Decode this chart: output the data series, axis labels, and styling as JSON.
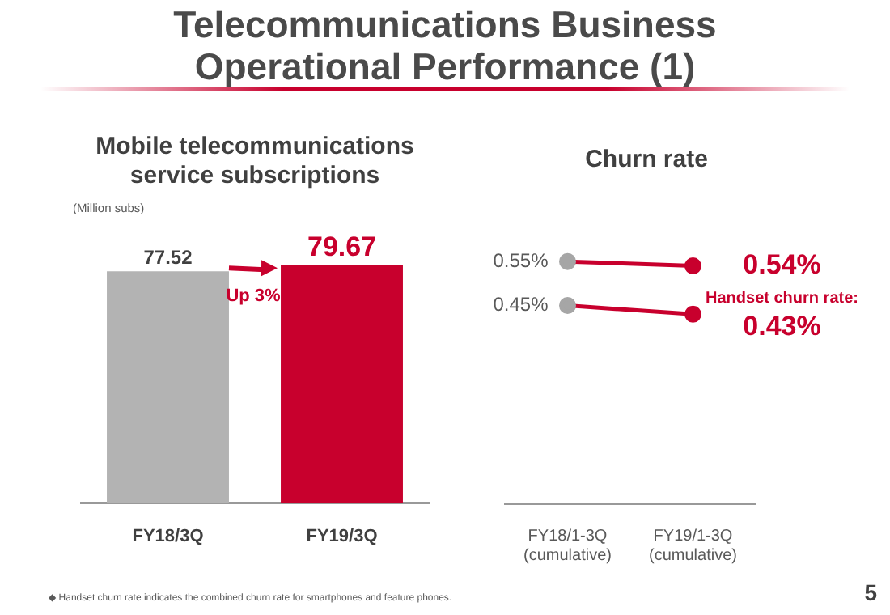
{
  "chart_data": [
    {
      "type": "other",
      "title": "Telecommunications Business Operational Performance (1)",
      "annotations": [
        "◆ Handset churn rate indicates the combined churn rate for smartphones and feature phones.",
        "5"
      ]
    },
    {
      "type": "bar",
      "title": "Mobile telecommunications service subscriptions",
      "ylabel": "(Million subs)",
      "categories": [
        "FY18/3Q",
        "FY19/3Q"
      ],
      "values": [
        77.52,
        79.67
      ],
      "colors": [
        "#b3b3b3",
        "#c8002d"
      ],
      "data_labels": true,
      "annotations": [
        "Up 3%"
      ],
      "tick_labels": "x",
      "grid": false
    },
    {
      "type": "line",
      "title": "Churn rate",
      "categories": [
        "FY18/1-3Q (cumulative)",
        "FY19/1-3Q (cumulative)"
      ],
      "marker": "circle",
      "tick_labels": "x",
      "grid": false,
      "series": [
        {
          "color": "#c8002d",
          "colors": [
            "#a6a6a6",
            "#c8002d"
          ],
          "values": [
            0.55,
            0.54
          ],
          "value_labels": [
            "0.55%",
            "0.54%"
          ]
        },
        {
          "name": "Handset churn rate:",
          "color": "#c8002d",
          "colors": [
            "#a6a6a6",
            "#c8002d"
          ],
          "values": [
            0.45,
            0.43
          ],
          "value_labels": [
            "0.45%",
            "0.43%"
          ]
        }
      ]
    }
  ]
}
